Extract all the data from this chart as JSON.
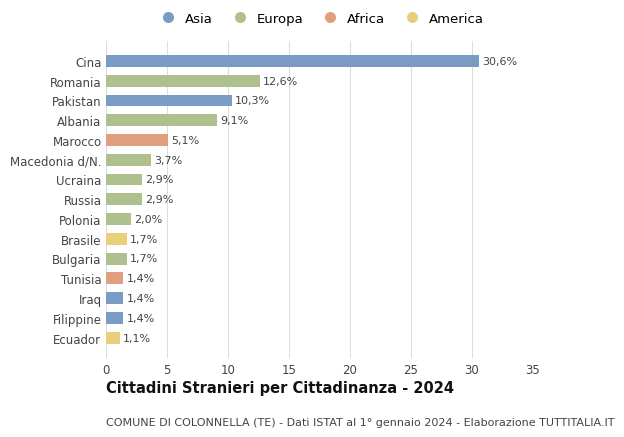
{
  "categories": [
    "Cina",
    "Romania",
    "Pakistan",
    "Albania",
    "Marocco",
    "Macedonia d/N.",
    "Ucraina",
    "Russia",
    "Polonia",
    "Brasile",
    "Bulgaria",
    "Tunisia",
    "Iraq",
    "Filippine",
    "Ecuador"
  ],
  "values": [
    30.6,
    12.6,
    10.3,
    9.1,
    5.1,
    3.7,
    2.9,
    2.9,
    2.0,
    1.7,
    1.7,
    1.4,
    1.4,
    1.4,
    1.1
  ],
  "labels": [
    "30,6%",
    "12,6%",
    "10,3%",
    "9,1%",
    "5,1%",
    "3,7%",
    "2,9%",
    "2,9%",
    "2,0%",
    "1,7%",
    "1,7%",
    "1,4%",
    "1,4%",
    "1,4%",
    "1,1%"
  ],
  "continents": [
    "Asia",
    "Europa",
    "Asia",
    "Europa",
    "Africa",
    "Europa",
    "Europa",
    "Europa",
    "Europa",
    "America",
    "Europa",
    "Africa",
    "Asia",
    "Asia",
    "America"
  ],
  "continent_colors": {
    "Asia": "#7a9cc4",
    "Europa": "#afc08f",
    "Africa": "#e0a080",
    "America": "#e8cf7a"
  },
  "legend_order": [
    "Asia",
    "Europa",
    "Africa",
    "America"
  ],
  "title": "Cittadini Stranieri per Cittadinanza - 2024",
  "subtitle": "COMUNE DI COLONNELLA (TE) - Dati ISTAT al 1° gennaio 2024 - Elaborazione TUTTITALIA.IT",
  "xlim": [
    0,
    35
  ],
  "xticks": [
    0,
    5,
    10,
    15,
    20,
    25,
    30,
    35
  ],
  "background_color": "#ffffff",
  "grid_color": "#dddddd",
  "bar_height": 0.6,
  "title_fontsize": 10.5,
  "subtitle_fontsize": 8.0,
  "label_fontsize": 8.0,
  "tick_fontsize": 8.5,
  "legend_fontsize": 9.5
}
